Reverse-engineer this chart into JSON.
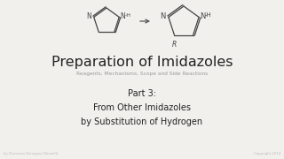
{
  "bg_color": "#f2f0ed",
  "title": "Preparation of Imidazoles",
  "subtitle": "Reagents, Mechanisms, Scope and Side Reactions",
  "part_text": "Part 3:\nFrom Other Imidazoles\nby Substitution of Hydrogen",
  "footer_left": "by Florencio Zaragoza Dörwald",
  "footer_right": "Copyright 2014",
  "title_color": "#222222",
  "subtitle_color": "#999999",
  "part_color": "#222222",
  "footer_color": "#bbbbbb",
  "title_fontsize": 11.5,
  "subtitle_fontsize": 4.2,
  "part_fontsize": 7.0,
  "footer_fontsize": 2.8,
  "chem_color": "#444444",
  "arrow_color": "#555555"
}
